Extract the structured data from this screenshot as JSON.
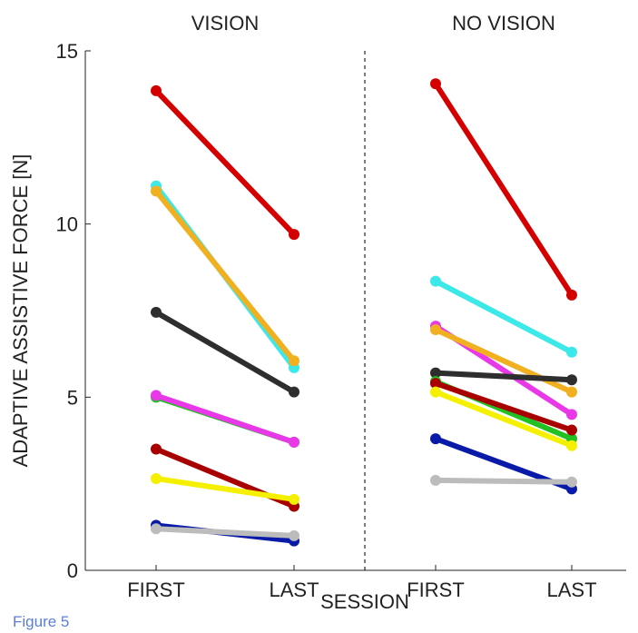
{
  "figure_label": "Figure 5",
  "chart_data": {
    "type": "line",
    "panels": [
      {
        "title": "VISION",
        "categories": [
          "FIRST",
          "LAST"
        ],
        "series": [
          {
            "color": "#d40000",
            "values": [
              13.85,
              9.7
            ]
          },
          {
            "color": "#3ce8e8",
            "values": [
              11.1,
              5.85
            ]
          },
          {
            "color": "#f0b020",
            "values": [
              10.95,
              6.05
            ]
          },
          {
            "color": "#2e2e2e",
            "values": [
              7.45,
              5.15
            ]
          },
          {
            "color": "#22c022",
            "values": [
              5.0,
              3.7
            ]
          },
          {
            "color": "#e838e8",
            "values": [
              5.05,
              3.7
            ]
          },
          {
            "color": "#a80000",
            "values": [
              3.5,
              1.85
            ]
          },
          {
            "color": "#f4f000",
            "values": [
              2.65,
              2.05
            ]
          },
          {
            "color": "#0a1aa8",
            "values": [
              1.3,
              0.85
            ]
          },
          {
            "color": "#bcbcbc",
            "values": [
              1.2,
              1.0
            ]
          }
        ]
      },
      {
        "title": "NO VISION",
        "categories": [
          "FIRST",
          "LAST"
        ],
        "series": [
          {
            "color": "#d40000",
            "values": [
              14.05,
              7.95
            ]
          },
          {
            "color": "#3ce8e8",
            "values": [
              8.35,
              6.3
            ]
          },
          {
            "color": "#e838e8",
            "values": [
              7.05,
              4.5
            ]
          },
          {
            "color": "#f0b020",
            "values": [
              6.95,
              5.15
            ]
          },
          {
            "color": "#2e2e2e",
            "values": [
              5.7,
              5.5
            ]
          },
          {
            "color": "#22c022",
            "values": [
              5.45,
              3.8
            ]
          },
          {
            "color": "#a80000",
            "values": [
              5.4,
              4.05
            ]
          },
          {
            "color": "#f4f000",
            "values": [
              5.15,
              3.6
            ]
          },
          {
            "color": "#0a1aa8",
            "values": [
              3.8,
              2.35
            ]
          },
          {
            "color": "#bcbcbc",
            "values": [
              2.6,
              2.55
            ]
          }
        ]
      }
    ],
    "xlabel": "SESSION",
    "ylabel": "ADAPTIVE ASSISTIVE FORCE [N]",
    "ylim": [
      0,
      15
    ],
    "yticks": [
      0,
      5,
      10,
      15
    ],
    "grid": false,
    "divider": "dashed"
  }
}
